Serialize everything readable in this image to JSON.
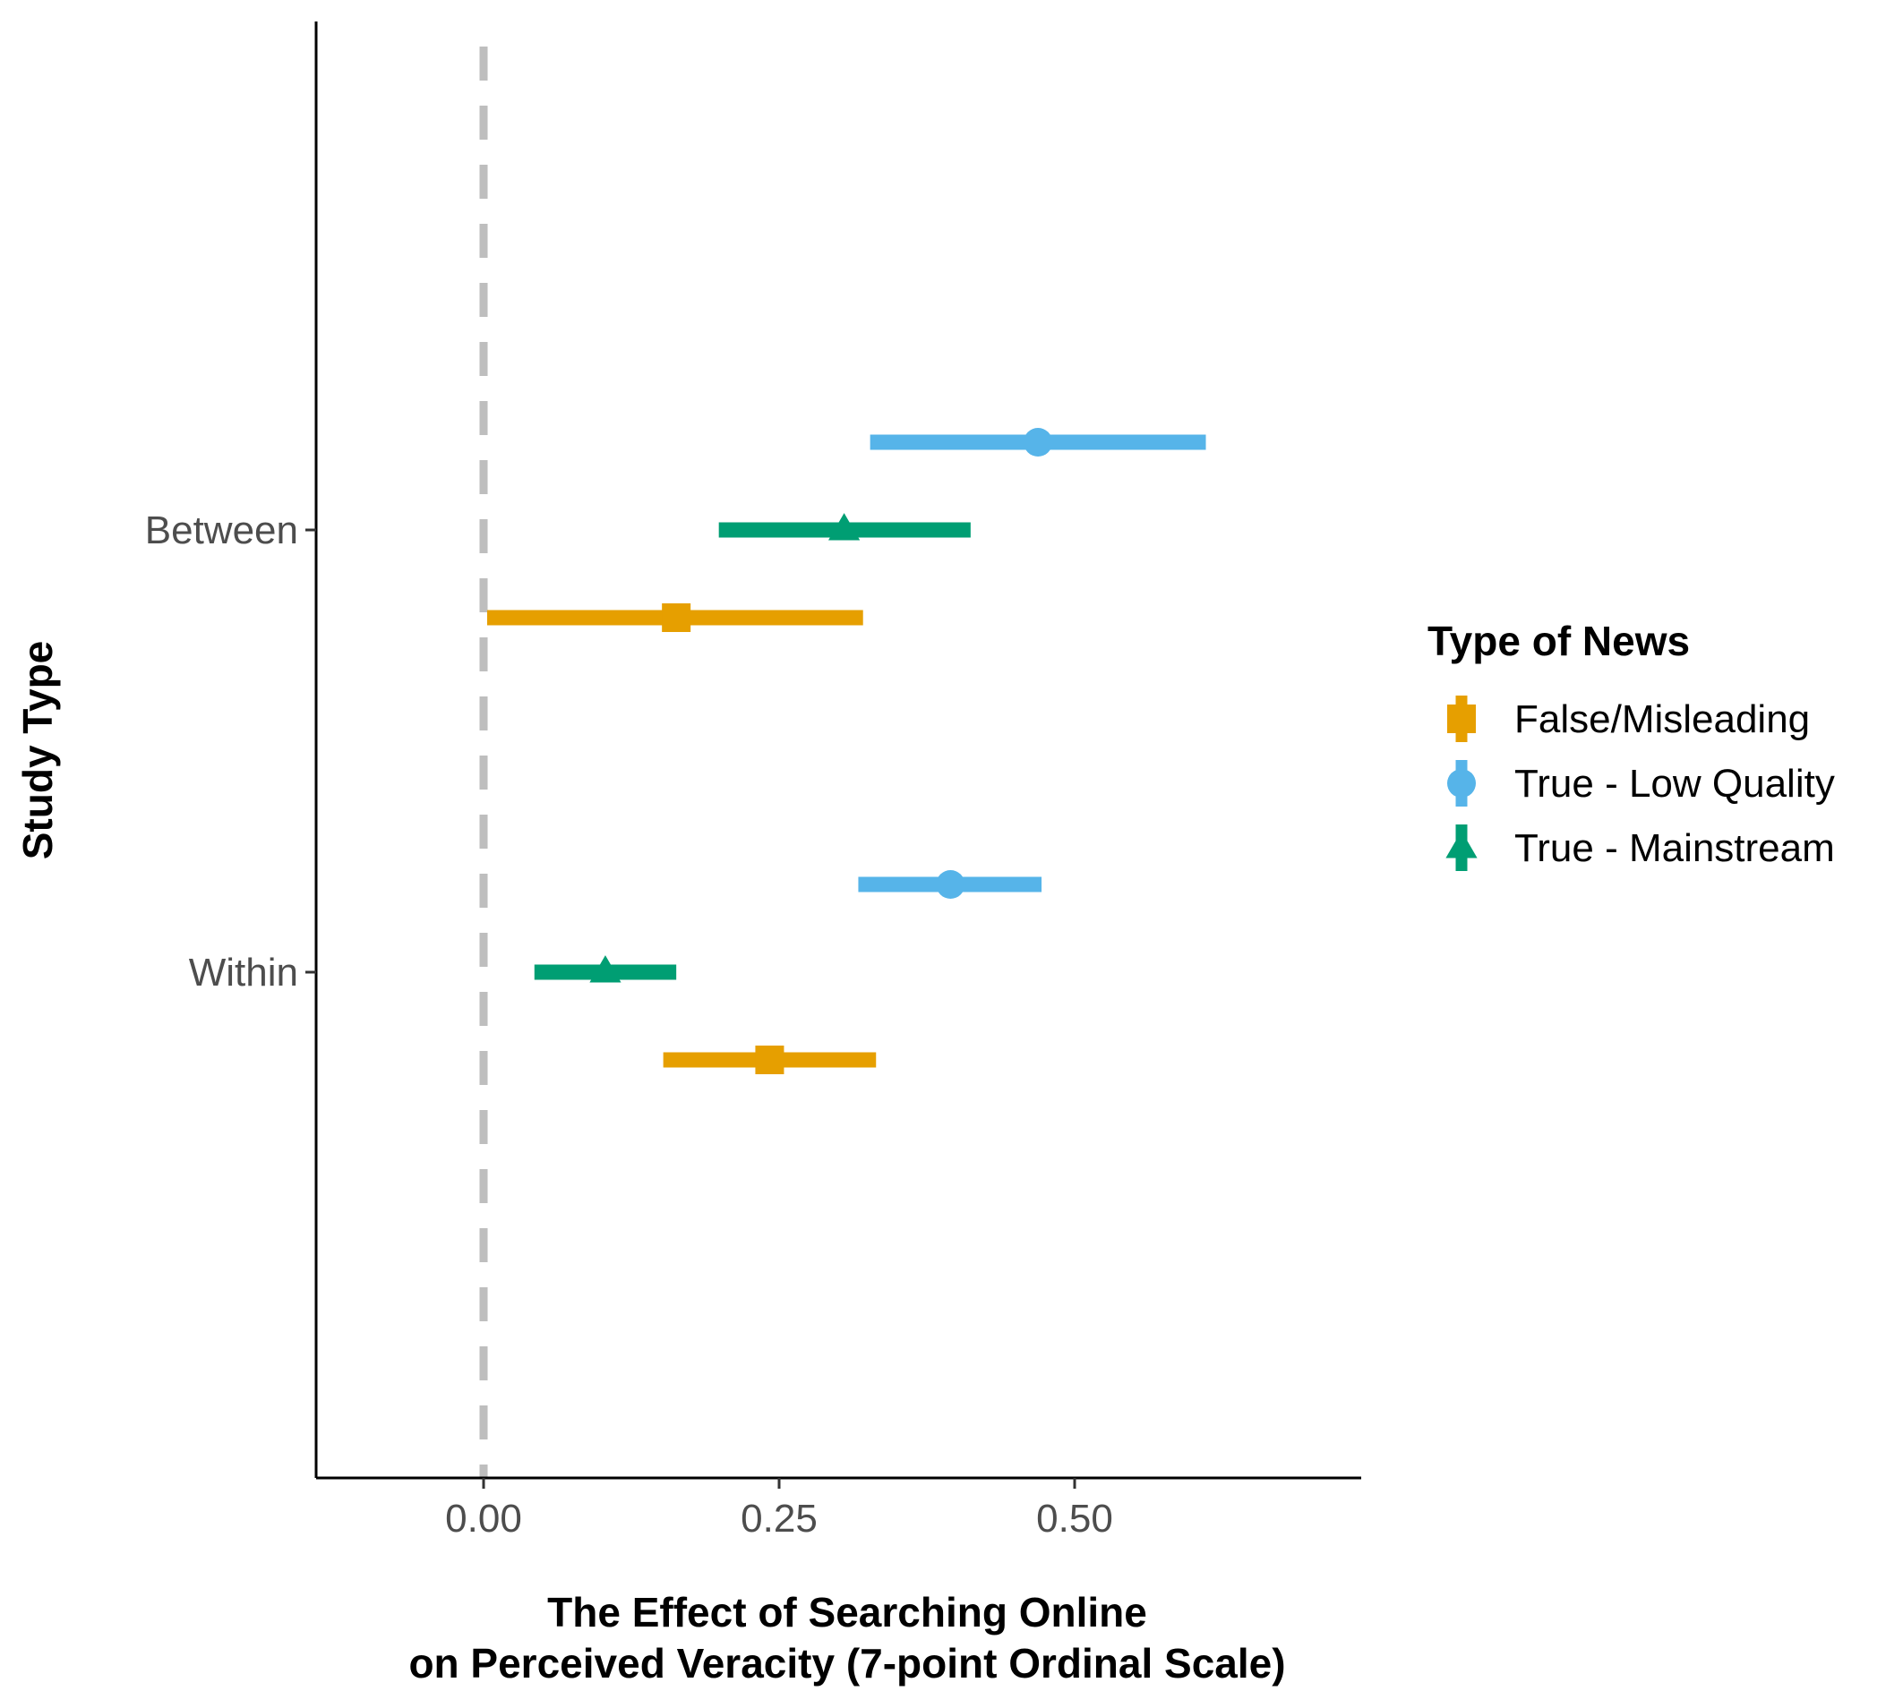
{
  "chart_data": {
    "type": "forest",
    "title": "",
    "xlabel_line1": "The Effect of Searching Online",
    "xlabel_line2": "on Perceived Veracity (7-point Ordinal Scale)",
    "ylabel": "Study Type",
    "xlim": [
      -0.142,
      0.745
    ],
    "x_ticks": [
      0.0,
      0.25,
      0.5
    ],
    "x_tick_labels": [
      "0.00",
      "0.25",
      "0.50"
    ],
    "y_categories": [
      "Between",
      "Within"
    ],
    "reference_line": 0.0,
    "legend_title": "Type of News",
    "legend_position": "right",
    "series": [
      {
        "name": "False/Misleading",
        "color": "#E69F00",
        "shape": "square",
        "points": [
          {
            "category": "Between",
            "estimate": 0.163,
            "lower": 0.003,
            "upper": 0.321
          },
          {
            "category": "Within",
            "estimate": 0.242,
            "lower": 0.152,
            "upper": 0.332
          }
        ]
      },
      {
        "name": "True - Low Quality",
        "color": "#56B4E9",
        "shape": "circle",
        "points": [
          {
            "category": "Between",
            "estimate": 0.469,
            "lower": 0.327,
            "upper": 0.611
          },
          {
            "category": "Within",
            "estimate": 0.395,
            "lower": 0.317,
            "upper": 0.472
          }
        ]
      },
      {
        "name": "True - Mainstream",
        "color": "#009E73",
        "shape": "triangle",
        "points": [
          {
            "category": "Between",
            "estimate": 0.305,
            "lower": 0.199,
            "upper": 0.412
          },
          {
            "category": "Within",
            "estimate": 0.103,
            "lower": 0.043,
            "upper": 0.163
          }
        ]
      }
    ]
  }
}
